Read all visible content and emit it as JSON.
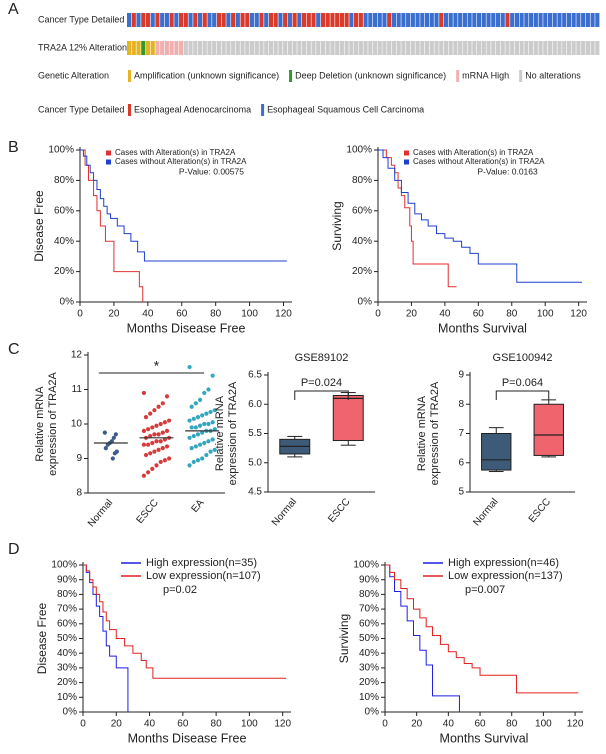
{
  "panel_labels": [
    "A",
    "B",
    "C",
    "D"
  ],
  "chart_data": [
    {
      "type": "oncoprint",
      "tracks": [
        {
          "label": "Cancer Type Detailed",
          "values": [
            1,
            0,
            1,
            0,
            0,
            1,
            0,
            1,
            1,
            0,
            1,
            0,
            0,
            1,
            0,
            1,
            0,
            1,
            1,
            0,
            0,
            1,
            0,
            1,
            0,
            0,
            1,
            1,
            0,
            1,
            0,
            0,
            1,
            0,
            1,
            0,
            1,
            0,
            0,
            0,
            1,
            0,
            0,
            0,
            0,
            0,
            0,
            1,
            0,
            0,
            1,
            1,
            1,
            1,
            1,
            0,
            1,
            1,
            1,
            1,
            1,
            1,
            1,
            1,
            1,
            1,
            0,
            1,
            1,
            1,
            1,
            1,
            1,
            1,
            1,
            1,
            1,
            1,
            1,
            1,
            0,
            1,
            1,
            1,
            1,
            1,
            1,
            1,
            1,
            1,
            1,
            1,
            1,
            1,
            1,
            1,
            1,
            1,
            1,
            1
          ]
        },
        {
          "label": "TRA2A 12% Alteration",
          "values": [
            0,
            0,
            0,
            1,
            0,
            0,
            2,
            2,
            2,
            2,
            2,
            2,
            3,
            3,
            3,
            3,
            3,
            3,
            3,
            3,
            3,
            3,
            3,
            3,
            3,
            3,
            3,
            3,
            3,
            3,
            3,
            3,
            3,
            3,
            3,
            3,
            3,
            3,
            3,
            3,
            3,
            3,
            3,
            3,
            3,
            3,
            3,
            3,
            3,
            3,
            3,
            3,
            3,
            3,
            3,
            3,
            3,
            3,
            3,
            3,
            3,
            3,
            3,
            3,
            3,
            3,
            3,
            3,
            3,
            3,
            3,
            3,
            3,
            3,
            3,
            3,
            3,
            3,
            3,
            3,
            3,
            3,
            3,
            3,
            3,
            3,
            3,
            3,
            3,
            3,
            3,
            3,
            3,
            3,
            3,
            3,
            3,
            3,
            3,
            3
          ]
        }
      ],
      "legends": [
        {
          "title": "Genetic Alteration",
          "items": [
            {
              "name": "Amplification (unknown significance)",
              "color": "#e6b422"
            },
            {
              "name": "Deep Deletion (unknown significance)",
              "color": "#2e9a2e"
            },
            {
              "name": "mRNA High",
              "color": "#f0b0b0"
            },
            {
              "name": "No alterations",
              "color": "#cbcbcb"
            }
          ]
        },
        {
          "title": "Cancer Type Detailed",
          "items": [
            {
              "name": "Esophageal Adenocarcinoma",
              "color": "#d93a2b"
            },
            {
              "name": "Esophageal Squamous Cell Carcinoma",
              "color": "#3a6fd0"
            }
          ]
        }
      ]
    },
    {
      "type": "km",
      "ylabel": "Disease Free",
      "xlabel": "Months Disease Free",
      "xlim": [
        0,
        125
      ],
      "ylim": [
        0,
        100
      ],
      "xticks": [
        0,
        20,
        40,
        60,
        80,
        100,
        120
      ],
      "yticks": [
        {
          "value": 0,
          "label": "0%"
        },
        {
          "value": 20,
          "label": "20%"
        },
        {
          "value": 40,
          "label": "40%"
        },
        {
          "value": 60,
          "label": "60%"
        },
        {
          "value": 80,
          "label": "80%"
        },
        {
          "value": 100,
          "label": "100%"
        }
      ],
      "annotation": "P-Value: 0.00575",
      "series": [
        {
          "name": "Cases with Alteration(s) in TRA2A",
          "color": "#e03030",
          "x": [
            0,
            3,
            3,
            5,
            5,
            8,
            8,
            10,
            10,
            12,
            12,
            15,
            15,
            20,
            20,
            35,
            35,
            37,
            37
          ],
          "values": [
            100,
            100,
            90,
            90,
            80,
            80,
            70,
            70,
            60,
            60,
            50,
            50,
            40,
            40,
            20,
            20,
            10,
            10,
            0
          ]
        },
        {
          "name": "Cases without Alteration(s) in TRA2A",
          "color": "#1f3fd0",
          "x": [
            0,
            2,
            2,
            4,
            4,
            6,
            6,
            8,
            8,
            10,
            10,
            12,
            12,
            14,
            14,
            16,
            16,
            18,
            18,
            22,
            22,
            26,
            26,
            30,
            30,
            34,
            34,
            38,
            38,
            122
          ],
          "values": [
            100,
            100,
            96,
            96,
            90,
            90,
            85,
            85,
            80,
            80,
            74,
            74,
            68,
            68,
            63,
            63,
            58,
            58,
            55,
            55,
            50,
            50,
            45,
            45,
            40,
            40,
            33,
            33,
            27,
            27
          ]
        }
      ]
    },
    {
      "type": "km",
      "ylabel": "Surviving",
      "xlabel": "Months Survival",
      "xlim": [
        0,
        125
      ],
      "ylim": [
        0,
        100
      ],
      "xticks": [
        0,
        20,
        40,
        60,
        80,
        100,
        120
      ],
      "yticks": [
        {
          "value": 0,
          "label": "0%"
        },
        {
          "value": 20,
          "label": "20%"
        },
        {
          "value": 40,
          "label": "40%"
        },
        {
          "value": 60,
          "label": "60%"
        },
        {
          "value": 80,
          "label": "80%"
        },
        {
          "value": 100,
          "label": "100%"
        }
      ],
      "annotation": "P-Value: 0.0163",
      "series": [
        {
          "name": "Cases with Alteration(s) in TRA2A",
          "color": "#e03030",
          "x": [
            0,
            5,
            5,
            8,
            8,
            10,
            10,
            12,
            12,
            14,
            14,
            16,
            16,
            19,
            19,
            20,
            20,
            21,
            21,
            42,
            42,
            47
          ],
          "values": [
            100,
            100,
            95,
            95,
            90,
            90,
            85,
            85,
            75,
            75,
            70,
            70,
            62,
            62,
            50,
            50,
            40,
            40,
            25,
            25,
            10,
            10
          ]
        },
        {
          "name": "Cases without Alteration(s) in TRA2A",
          "color": "#1f3fd0",
          "x": [
            0,
            3,
            3,
            6,
            6,
            10,
            10,
            14,
            14,
            18,
            18,
            22,
            22,
            26,
            26,
            30,
            30,
            35,
            35,
            40,
            40,
            45,
            45,
            50,
            50,
            55,
            55,
            60,
            60,
            83,
            83,
            122
          ],
          "values": [
            100,
            100,
            95,
            95,
            88,
            88,
            80,
            80,
            72,
            72,
            65,
            65,
            58,
            58,
            54,
            54,
            50,
            50,
            45,
            45,
            42,
            42,
            40,
            40,
            36,
            36,
            32,
            32,
            25,
            25,
            13,
            13
          ]
        }
      ]
    },
    {
      "type": "dot",
      "ylabel": [
        "Relative mRNA",
        "expression of TRA2A"
      ],
      "categories": [
        "Normal",
        "ESCC",
        "EA"
      ],
      "colors": [
        "#3a5a8c",
        "#d63a3a",
        "#33a6bf"
      ],
      "ylim": [
        8,
        12
      ],
      "yticks": [
        8,
        9,
        10,
        11,
        12
      ],
      "annotation": "*",
      "means": [
        9.45,
        9.6,
        9.8
      ],
      "values": [
        [
          9.75,
          9.7,
          9.6,
          9.5,
          9.45,
          9.4,
          9.3,
          9.2,
          9.15,
          9.0
        ],
        [
          10.9,
          10.8,
          10.6,
          10.5,
          10.4,
          10.3,
          10.2,
          10.1,
          10.05,
          10.0,
          9.95,
          9.9,
          9.85,
          9.8,
          9.8,
          9.75,
          9.7,
          9.7,
          9.65,
          9.6,
          9.6,
          9.55,
          9.5,
          9.5,
          9.45,
          9.4,
          9.4,
          9.35,
          9.3,
          9.25,
          9.2,
          9.15,
          9.1,
          9.0,
          8.95,
          8.9,
          8.8,
          8.7,
          8.6,
          8.5
        ],
        [
          11.65,
          11.4,
          11.0,
          10.9,
          10.7,
          10.6,
          10.5,
          10.4,
          10.35,
          10.3,
          10.25,
          10.2,
          10.15,
          10.1,
          10.05,
          10.0,
          10.0,
          9.95,
          9.9,
          9.9,
          9.85,
          9.8,
          9.8,
          9.75,
          9.7,
          9.65,
          9.6,
          9.55,
          9.5,
          9.45,
          9.4,
          9.35,
          9.3,
          9.25,
          9.2,
          9.1,
          9.0,
          8.95,
          8.9,
          8.8
        ]
      ]
    },
    {
      "type": "box",
      "title": "GSE89102",
      "ylabel": [
        "Relative mRNA",
        "expression of TRA2A"
      ],
      "categories": [
        "Normal",
        "ESCC"
      ],
      "colors": [
        "#3d5a78",
        "#f0646e"
      ],
      "ylim": [
        4.5,
        6.5
      ],
      "yticks": [
        4.5,
        {
          "value": 5,
          "label": "5.0"
        },
        5.5,
        {
          "value": 6,
          "label": "6.0"
        },
        6.5
      ],
      "annotation": "P=0.024",
      "boxes": [
        {
          "min": 5.1,
          "q1": 5.15,
          "median": 5.28,
          "q3": 5.4,
          "max": 5.45
        },
        {
          "min": 5.3,
          "q1": 5.38,
          "median": 6.1,
          "q3": 6.15,
          "max": 6.2
        }
      ]
    },
    {
      "type": "box",
      "title": "GSE100942",
      "ylabel": [
        "Relative mRNA",
        "expression of TRA2A"
      ],
      "categories": [
        "Normal",
        "ESCC"
      ],
      "colors": [
        "#3d5a78",
        "#f0646e"
      ],
      "ylim": [
        5,
        9
      ],
      "yticks": [
        5,
        6,
        7,
        8,
        9
      ],
      "annotation": "P=0.064",
      "boxes": [
        {
          "min": 5.7,
          "q1": 5.75,
          "median": 6.1,
          "q3": 7.0,
          "max": 7.2
        },
        {
          "min": 6.2,
          "q1": 6.25,
          "median": 6.95,
          "q3": 8.0,
          "max": 8.15
        }
      ]
    },
    {
      "type": "km",
      "ylabel": "Disease Free",
      "xlabel": "Months Disease Free",
      "xlim": [
        0,
        125
      ],
      "ylim": [
        0,
        100
      ],
      "xticks": [
        0,
        20,
        40,
        60,
        80,
        100,
        120
      ],
      "yticks": [
        {
          "value": 0,
          "label": "0%"
        },
        {
          "value": 10,
          "label": "10%"
        },
        {
          "value": 20,
          "label": "20%"
        },
        {
          "value": 30,
          "label": "30%"
        },
        {
          "value": 40,
          "label": "40%"
        },
        {
          "value": 50,
          "label": "50%"
        },
        {
          "value": 60,
          "label": "60%"
        },
        {
          "value": 70,
          "label": "70%"
        },
        {
          "value": 80,
          "label": "80%"
        },
        {
          "value": 90,
          "label": "90%"
        },
        {
          "value": 100,
          "label": "100%"
        }
      ],
      "annotation": "p=0.02",
      "series": [
        {
          "name": "High expression(n=35)",
          "color": "#1f1fe0",
          "x": [
            0,
            2,
            2,
            4,
            4,
            6,
            6,
            8,
            8,
            10,
            10,
            12,
            12,
            14,
            14,
            16,
            16,
            20,
            20,
            27,
            27
          ],
          "values": [
            100,
            100,
            95,
            95,
            88,
            88,
            80,
            80,
            72,
            72,
            65,
            65,
            55,
            55,
            45,
            45,
            38,
            38,
            30,
            30,
            0
          ]
        },
        {
          "name": "Low expression(n=107)",
          "color": "#e02020",
          "x": [
            0,
            2,
            2,
            4,
            4,
            6,
            6,
            8,
            8,
            10,
            10,
            12,
            12,
            14,
            14,
            16,
            16,
            20,
            20,
            25,
            25,
            30,
            30,
            35,
            35,
            38,
            38,
            42,
            42,
            122
          ],
          "values": [
            100,
            100,
            96,
            96,
            90,
            90,
            85,
            85,
            80,
            80,
            75,
            75,
            68,
            68,
            62,
            62,
            56,
            56,
            50,
            50,
            45,
            45,
            40,
            40,
            35,
            35,
            30,
            30,
            23,
            23
          ]
        }
      ]
    },
    {
      "type": "km",
      "ylabel": "Surviving",
      "xlabel": "Months Survival",
      "xlim": [
        0,
        125
      ],
      "ylim": [
        0,
        100
      ],
      "xticks": [
        0,
        20,
        40,
        60,
        80,
        100,
        120
      ],
      "yticks": [
        {
          "value": 0,
          "label": "0%"
        },
        {
          "value": 10,
          "label": "10%"
        },
        {
          "value": 20,
          "label": "20%"
        },
        {
          "value": 30,
          "label": "30%"
        },
        {
          "value": 40,
          "label": "40%"
        },
        {
          "value": 50,
          "label": "50%"
        },
        {
          "value": 60,
          "label": "60%"
        },
        {
          "value": 70,
          "label": "70%"
        },
        {
          "value": 80,
          "label": "80%"
        },
        {
          "value": 90,
          "label": "90%"
        },
        {
          "value": 100,
          "label": "100%"
        }
      ],
      "annotation": "p=0.007",
      "series": [
        {
          "name": "High expression(n=46)",
          "color": "#1f1fe0",
          "x": [
            0,
            3,
            3,
            6,
            6,
            10,
            10,
            14,
            14,
            18,
            18,
            22,
            22,
            26,
            26,
            30,
            30,
            47,
            47
          ],
          "values": [
            100,
            100,
            92,
            92,
            82,
            82,
            72,
            72,
            62,
            62,
            52,
            52,
            42,
            42,
            32,
            32,
            11,
            11,
            0
          ]
        },
        {
          "name": "Low expression(n=137)",
          "color": "#e02020",
          "x": [
            0,
            3,
            3,
            6,
            6,
            10,
            10,
            14,
            14,
            18,
            18,
            22,
            22,
            26,
            26,
            30,
            30,
            35,
            35,
            40,
            40,
            45,
            45,
            50,
            50,
            55,
            55,
            60,
            60,
            83,
            83,
            122
          ],
          "values": [
            100,
            100,
            95,
            95,
            90,
            90,
            84,
            84,
            77,
            77,
            70,
            70,
            64,
            64,
            58,
            58,
            52,
            52,
            46,
            46,
            41,
            41,
            37,
            37,
            33,
            33,
            30,
            30,
            25,
            25,
            13,
            13
          ]
        }
      ]
    }
  ]
}
